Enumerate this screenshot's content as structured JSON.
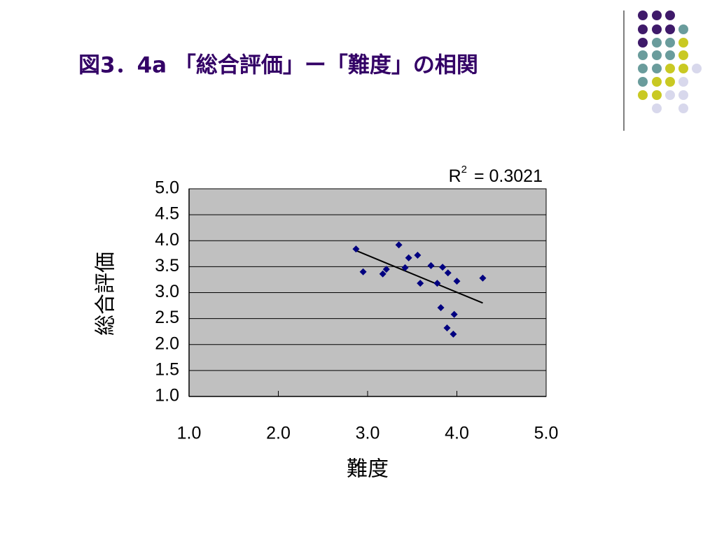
{
  "title": "図3．4a 「総合評価」ー「難度」の相関",
  "chart_data": {
    "type": "scatter",
    "x_label": "難度",
    "y_label": "総合評価",
    "annotation": {
      "base": "R",
      "sup": "2",
      "text": "= 0.3021"
    },
    "x": [
      2.87,
      2.95,
      3.17,
      3.21,
      3.35,
      3.42,
      3.46,
      3.56,
      3.59,
      3.71,
      3.78,
      3.82,
      3.84,
      3.9,
      3.89,
      3.96,
      3.97,
      4.0,
      4.29
    ],
    "values": [
      3.84,
      3.4,
      3.36,
      3.45,
      3.92,
      3.48,
      3.67,
      3.72,
      3.18,
      3.52,
      3.18,
      2.71,
      3.49,
      3.38,
      2.32,
      2.2,
      2.58,
      3.22,
      3.28
    ],
    "color": "#000080",
    "trendline": {
      "x": [
        2.87,
        4.29
      ],
      "values": [
        3.81,
        2.8
      ],
      "color": "#000000"
    },
    "xlim": [
      1,
      5
    ],
    "ylim": [
      1,
      5
    ],
    "xticks": [
      {
        "value": 1,
        "label": "1.0"
      },
      {
        "value": 2,
        "label": "2.0"
      },
      {
        "value": 3,
        "label": "3.0"
      },
      {
        "value": 4,
        "label": "4.0"
      },
      {
        "value": 5,
        "label": "5.0"
      }
    ],
    "yticks": [
      {
        "value": 1,
        "label": "1.0"
      },
      {
        "value": 1.5,
        "label": "1.5"
      },
      {
        "value": 2,
        "label": "2.0"
      },
      {
        "value": 2.5,
        "label": "2.5"
      },
      {
        "value": 3,
        "label": "3.0"
      },
      {
        "value": 3.5,
        "label": "3.5"
      },
      {
        "value": 4,
        "label": "4.0"
      },
      {
        "value": 4.5,
        "label": "4.5"
      },
      {
        "value": 5,
        "label": "5.0"
      }
    ],
    "grid": true
  }
}
